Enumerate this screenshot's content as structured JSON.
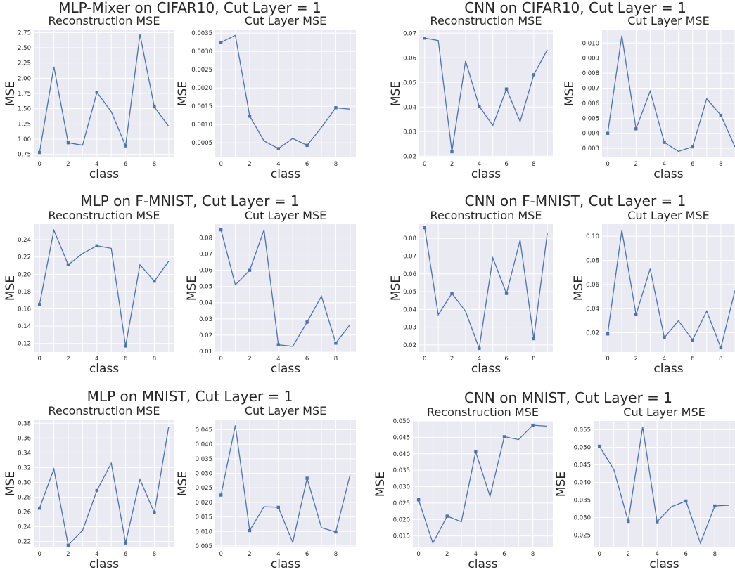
{
  "groups": [
    {
      "title": "MLP-Mixer on CIFAR10, Cut Layer = 1",
      "panels": [
        {
          "title": "Reconstruction MSE",
          "xlabel": "class",
          "ylabel": "MSE"
        },
        {
          "title": "Cut Layer MSE",
          "xlabel": "class",
          "ylabel": "MSE"
        }
      ]
    },
    {
      "title": "CNN on CIFAR10, Cut Layer = 1",
      "panels": [
        {
          "title": "Reconstruction MSE",
          "xlabel": "class",
          "ylabel": "MSE"
        },
        {
          "title": "Cut Layer MSE",
          "xlabel": "class",
          "ylabel": "MSE"
        }
      ]
    },
    {
      "title": "MLP on F-MNIST, Cut Layer = 1",
      "panels": [
        {
          "title": "Reconstruction MSE",
          "xlabel": "class",
          "ylabel": "MSE"
        },
        {
          "title": "Cut Layer MSE",
          "xlabel": "class",
          "ylabel": "MSE"
        }
      ]
    },
    {
      "title": "CNN on F-MNIST, Cut Layer = 1",
      "panels": [
        {
          "title": "Reconstruction MSE",
          "xlabel": "class",
          "ylabel": "MSE"
        },
        {
          "title": "Cut Layer MSE",
          "xlabel": "class",
          "ylabel": "MSE"
        }
      ]
    },
    {
      "title": "MLP on MNIST, Cut Layer = 1",
      "panels": [
        {
          "title": "Reconstruction MSE",
          "xlabel": "class",
          "ylabel": "MSE"
        },
        {
          "title": "Cut Layer MSE",
          "xlabel": "class",
          "ylabel": "MSE"
        }
      ]
    },
    {
      "title": "CNN on MNIST, Cut Layer = 1",
      "panels": [
        {
          "title": "Reconstruction MSE",
          "xlabel": "class",
          "ylabel": "MSE"
        },
        {
          "title": "Cut Layer MSE",
          "xlabel": "class",
          "ylabel": "MSE"
        }
      ]
    }
  ],
  "style": {
    "line_color": "#4c72b0",
    "background": "#eaeaf2",
    "grid_color": "#ffffff"
  },
  "chart_data": [
    {
      "type": "line",
      "group": 0,
      "title": "Reconstruction MSE",
      "xlabel": "class",
      "ylabel": "MSE",
      "x": [
        0,
        1,
        2,
        3,
        4,
        5,
        6,
        7,
        8,
        9
      ],
      "values": [
        0.78,
        2.19,
        0.94,
        0.9,
        1.77,
        1.45,
        0.89,
        2.72,
        1.53,
        1.21
      ],
      "markers_at": [
        0,
        2,
        4,
        6,
        8
      ],
      "xlim": [
        -0.4,
        9.4
      ],
      "ylim": [
        0.7,
        2.8
      ],
      "xticks": [
        0,
        2,
        4,
        6,
        8
      ],
      "xtick_labels": [
        "0",
        "2",
        "4",
        "6",
        "8"
      ],
      "yticks": [
        0.75,
        1.0,
        1.25,
        1.5,
        1.75,
        2.0,
        2.25,
        2.5,
        2.75
      ],
      "ytick_labels": [
        "0.75",
        "1.00",
        "1.25",
        "1.50",
        "1.75",
        "2.00",
        "2.25",
        "2.50",
        "2.75"
      ],
      "grid": true
    },
    {
      "type": "line",
      "group": 0,
      "title": "Cut Layer MSE",
      "xlabel": "class",
      "ylabel": "MSE",
      "x": [
        0,
        1,
        2,
        3,
        4,
        5,
        6,
        7,
        8,
        9
      ],
      "values": [
        0.00325,
        0.00344,
        0.00123,
        0.00055,
        0.00034,
        0.00062,
        0.00043,
        0.00092,
        0.00146,
        0.00142
      ],
      "markers_at": [
        0,
        2,
        4,
        6,
        8
      ],
      "xlim": [
        -0.4,
        9.4
      ],
      "ylim": [
        0.0001,
        0.0036
      ],
      "xticks": [
        0,
        2,
        4,
        6,
        8
      ],
      "xtick_labels": [
        "0",
        "2",
        "4",
        "6",
        "8"
      ],
      "yticks": [
        0.0005,
        0.001,
        0.0015,
        0.002,
        0.0025,
        0.003,
        0.0035
      ],
      "ytick_labels": [
        "0.0005",
        "0.0010",
        "0.0015",
        "0.0020",
        "0.0025",
        "0.0030",
        "0.0035"
      ],
      "grid": true
    },
    {
      "type": "line",
      "group": 1,
      "title": "Reconstruction MSE",
      "xlabel": "class",
      "ylabel": "MSE",
      "x": [
        0,
        1,
        2,
        3,
        4,
        5,
        6,
        7,
        8,
        9
      ],
      "values": [
        0.068,
        0.067,
        0.0218,
        0.0587,
        0.0403,
        0.0325,
        0.0473,
        0.0341,
        0.0531,
        0.0633
      ],
      "markers_at": [
        0,
        2,
        4,
        6,
        8
      ],
      "xlim": [
        -0.4,
        9.4
      ],
      "ylim": [
        0.0195,
        0.0715
      ],
      "xticks": [
        0,
        2,
        4,
        6,
        8
      ],
      "xtick_labels": [
        "0",
        "2",
        "4",
        "6",
        "8"
      ],
      "yticks": [
        0.02,
        0.03,
        0.04,
        0.05,
        0.06,
        0.07
      ],
      "ytick_labels": [
        "0.02",
        "0.03",
        "0.04",
        "0.05",
        "0.06",
        "0.07"
      ],
      "grid": true
    },
    {
      "type": "line",
      "group": 1,
      "title": "Cut Layer MSE",
      "xlabel": "class",
      "ylabel": "MSE",
      "x": [
        0,
        1,
        2,
        3,
        4,
        5,
        6,
        7,
        8,
        9
      ],
      "values": [
        0.004,
        0.0105,
        0.0043,
        0.0068,
        0.0034,
        0.0028,
        0.0031,
        0.0063,
        0.0052,
        0.0031
      ],
      "markers_at": [
        0,
        2,
        4,
        6,
        8
      ],
      "xlim": [
        -0.4,
        9.0
      ],
      "ylim": [
        0.0024,
        0.0109
      ],
      "xticks": [
        0,
        2,
        4,
        6,
        8
      ],
      "xtick_labels": [
        "0",
        "2",
        "4",
        "6",
        "8"
      ],
      "yticks": [
        0.003,
        0.004,
        0.005,
        0.006,
        0.007,
        0.008,
        0.009,
        0.01
      ],
      "ytick_labels": [
        "0.003",
        "0.004",
        "0.005",
        "0.006",
        "0.007",
        "0.008",
        "0.009",
        "0.010"
      ],
      "grid": true
    },
    {
      "type": "line",
      "group": 2,
      "title": "Reconstruction MSE",
      "xlabel": "class",
      "ylabel": "MSE",
      "x": [
        0,
        1,
        2,
        3,
        4,
        5,
        6,
        7,
        8,
        9
      ],
      "values": [
        0.165,
        0.251,
        0.211,
        0.224,
        0.233,
        0.23,
        0.117,
        0.211,
        0.192,
        0.215
      ],
      "markers_at": [
        0,
        2,
        4,
        6,
        8
      ],
      "xlim": [
        -0.4,
        9.4
      ],
      "ylim": [
        0.11,
        0.258
      ],
      "xticks": [
        0,
        2,
        4,
        6,
        8
      ],
      "xtick_labels": [
        "0",
        "2",
        "4",
        "6",
        "8"
      ],
      "yticks": [
        0.12,
        0.14,
        0.16,
        0.18,
        0.2,
        0.22,
        0.24
      ],
      "ytick_labels": [
        "0.12",
        "0.14",
        "0.16",
        "0.18",
        "0.20",
        "0.22",
        "0.24"
      ],
      "grid": true
    },
    {
      "type": "line",
      "group": 2,
      "title": "Cut Layer MSE",
      "xlabel": "class",
      "ylabel": "MSE",
      "x": [
        0,
        1,
        2,
        3,
        4,
        5,
        6,
        7,
        8,
        9
      ],
      "values": [
        0.085,
        0.051,
        0.06,
        0.085,
        0.014,
        0.013,
        0.028,
        0.044,
        0.015,
        0.0265
      ],
      "markers_at": [
        0,
        2,
        4,
        6,
        8
      ],
      "xlim": [
        -0.4,
        9.4
      ],
      "ylim": [
        0.0095,
        0.0885
      ],
      "xticks": [
        0,
        2,
        4,
        6,
        8
      ],
      "xtick_labels": [
        "0",
        "2",
        "4",
        "6",
        "8"
      ],
      "yticks": [
        0.01,
        0.02,
        0.03,
        0.04,
        0.05,
        0.06,
        0.07,
        0.08
      ],
      "ytick_labels": [
        "0.01",
        "0.02",
        "0.03",
        "0.04",
        "0.05",
        "0.06",
        "0.07",
        "0.08"
      ],
      "grid": true
    },
    {
      "type": "line",
      "group": 3,
      "title": "Reconstruction MSE",
      "xlabel": "class",
      "ylabel": "MSE",
      "x": [
        0,
        1,
        2,
        3,
        4,
        5,
        6,
        7,
        8,
        9
      ],
      "values": [
        0.086,
        0.037,
        0.049,
        0.039,
        0.018,
        0.069,
        0.049,
        0.079,
        0.0235,
        0.083
      ],
      "markers_at": [
        0,
        2,
        4,
        6,
        8
      ],
      "xlim": [
        -0.4,
        9.4
      ],
      "ylim": [
        0.016,
        0.088
      ],
      "xticks": [
        0,
        2,
        4,
        6,
        8
      ],
      "xtick_labels": [
        "0",
        "2",
        "4",
        "6",
        "8"
      ],
      "yticks": [
        0.02,
        0.03,
        0.04,
        0.05,
        0.06,
        0.07,
        0.08
      ],
      "ytick_labels": [
        "0.02",
        "0.03",
        "0.04",
        "0.05",
        "0.06",
        "0.07",
        "0.08"
      ],
      "grid": true
    },
    {
      "type": "line",
      "group": 3,
      "title": "Cut Layer MSE",
      "xlabel": "class",
      "ylabel": "MSE",
      "x": [
        0,
        1,
        2,
        3,
        4,
        5,
        6,
        7,
        8,
        9
      ],
      "values": [
        0.019,
        0.105,
        0.035,
        0.073,
        0.016,
        0.03,
        0.014,
        0.038,
        0.0075,
        0.055
      ],
      "markers_at": [
        0,
        2,
        4,
        6,
        8
      ],
      "xlim": [
        -0.4,
        9.0
      ],
      "ylim": [
        0.004,
        0.11
      ],
      "xticks": [
        0,
        2,
        4,
        6,
        8
      ],
      "xtick_labels": [
        "0",
        "2",
        "4",
        "6",
        "8"
      ],
      "yticks": [
        0.02,
        0.04,
        0.06,
        0.08,
        0.1
      ],
      "ytick_labels": [
        "0.02",
        "0.04",
        "0.06",
        "0.08",
        "0.10"
      ],
      "grid": true
    },
    {
      "type": "line",
      "group": 4,
      "title": "Reconstruction MSE",
      "xlabel": "class",
      "ylabel": "MSE",
      "x": [
        0,
        1,
        2,
        3,
        4,
        5,
        6,
        7,
        8,
        9
      ],
      "values": [
        0.265,
        0.318,
        0.215,
        0.235,
        0.289,
        0.326,
        0.218,
        0.304,
        0.259,
        0.375
      ],
      "markers_at": [
        0,
        2,
        4,
        6,
        8
      ],
      "xlim": [
        -0.4,
        9.4
      ],
      "ylim": [
        0.212,
        0.385
      ],
      "xticks": [
        0,
        2,
        4,
        6,
        8
      ],
      "xtick_labels": [
        "0",
        "2",
        "4",
        "6",
        "8"
      ],
      "yticks": [
        0.22,
        0.24,
        0.26,
        0.28,
        0.3,
        0.32,
        0.34,
        0.36,
        0.38
      ],
      "ytick_labels": [
        "0.22",
        "0.24",
        "0.26",
        "0.28",
        "0.30",
        "0.32",
        "0.34",
        "0.36",
        "0.38"
      ],
      "grid": true
    },
    {
      "type": "line",
      "group": 4,
      "title": "Cut Layer MSE",
      "xlabel": "class",
      "ylabel": "MSE",
      "x": [
        0,
        1,
        2,
        3,
        4,
        5,
        6,
        7,
        8,
        9
      ],
      "values": [
        0.0225,
        0.0465,
        0.0103,
        0.0185,
        0.0183,
        0.0062,
        0.0283,
        0.0113,
        0.0098,
        0.0295
      ],
      "markers_at": [
        0,
        2,
        4,
        6,
        8
      ],
      "xlim": [
        -0.4,
        9.4
      ],
      "ylim": [
        0.0045,
        0.0485
      ],
      "xticks": [
        0,
        2,
        4,
        6,
        8
      ],
      "xtick_labels": [
        "0",
        "2",
        "4",
        "6",
        "8"
      ],
      "yticks": [
        0.005,
        0.01,
        0.015,
        0.02,
        0.025,
        0.03,
        0.035,
        0.04,
        0.045
      ],
      "ytick_labels": [
        "0.005",
        "0.010",
        "0.015",
        "0.020",
        "0.025",
        "0.030",
        "0.035",
        "0.040",
        "0.045"
      ],
      "grid": true
    },
    {
      "type": "line",
      "group": 5,
      "title": "Reconstruction MSE",
      "xlabel": "class",
      "ylabel": "MSE",
      "x": [
        0,
        1,
        2,
        3,
        4,
        5,
        6,
        7,
        8,
        9
      ],
      "values": [
        0.026,
        0.0128,
        0.021,
        0.0193,
        0.0406,
        0.027,
        0.0452,
        0.0443,
        0.0487,
        0.0484
      ],
      "markers_at": [
        0,
        2,
        4,
        6,
        8
      ],
      "xlim": [
        -0.4,
        9.4
      ],
      "ylim": [
        0.0115,
        0.05
      ],
      "xticks": [
        0,
        2,
        4,
        6,
        8
      ],
      "xtick_labels": [
        "0",
        "2",
        "4",
        "6",
        "8"
      ],
      "yticks": [
        0.015,
        0.02,
        0.025,
        0.03,
        0.035,
        0.04,
        0.045,
        0.05
      ],
      "ytick_labels": [
        "0.015",
        "0.020",
        "0.025",
        "0.030",
        "0.035",
        "0.040",
        "0.045",
        "0.050"
      ],
      "grid": true
    },
    {
      "type": "line",
      "group": 5,
      "title": "Cut Layer MSE",
      "xlabel": "class",
      "ylabel": "MSE",
      "x": [
        0,
        1,
        2,
        3,
        4,
        5,
        6,
        7,
        8,
        9
      ],
      "values": [
        0.0503,
        0.0437,
        0.0289,
        0.0558,
        0.0288,
        0.0331,
        0.0347,
        0.0227,
        0.0333,
        0.0335
      ],
      "markers_at": [
        0,
        2,
        4,
        6,
        8
      ],
      "xlim": [
        -0.4,
        9.4
      ],
      "ylim": [
        0.0215,
        0.0575
      ],
      "xticks": [
        0,
        2,
        4,
        6,
        8
      ],
      "xtick_labels": [
        "0",
        "2",
        "4",
        "6",
        "8"
      ],
      "yticks": [
        0.025,
        0.03,
        0.035,
        0.04,
        0.045,
        0.05,
        0.055
      ],
      "ytick_labels": [
        "0.025",
        "0.030",
        "0.035",
        "0.040",
        "0.045",
        "0.050",
        "0.055"
      ],
      "grid": true
    }
  ]
}
